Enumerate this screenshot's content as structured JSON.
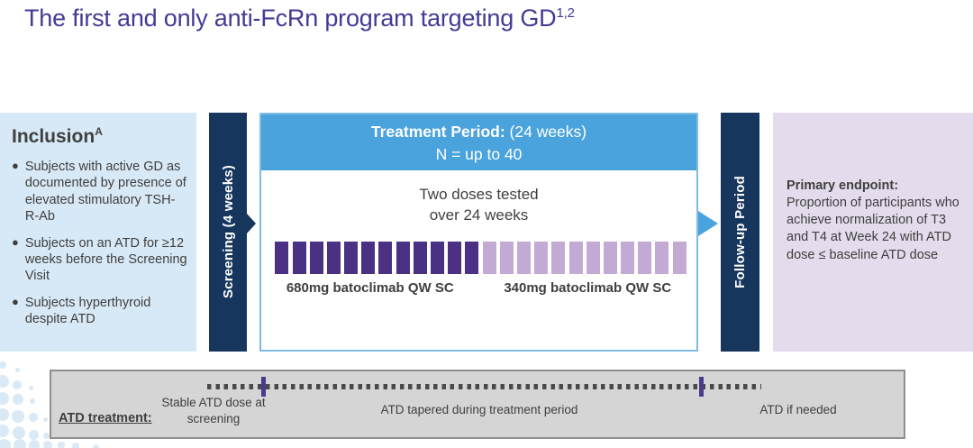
{
  "title": {
    "text": "The first and only anti-FcRn program targeting GD",
    "superscript": "1,2"
  },
  "inclusion": {
    "heading": "Inclusion",
    "heading_superscript": "A",
    "bullets": [
      "Subjects with active GD as documented by presence of elevated stimulatory TSH-R-Ab",
      "Subjects on an ATD for ≥12 weeks before the Screening Visit",
      "Subjects hyperthyroid despite ATD"
    ]
  },
  "screening": {
    "label": "Screening (4 weeks)"
  },
  "treatment": {
    "header_bold": "Treatment Period:",
    "header_rest": " (24 weeks)",
    "header_line2": "N = up to 40",
    "subtitle_line1": "Two doses tested",
    "subtitle_line2": "over 24 weeks",
    "dose_groups": [
      {
        "label": "680mg batoclimab QW SC",
        "doses": 12,
        "color": "#4A3184"
      },
      {
        "label": "340mg batoclimab QW SC",
        "doses": 12,
        "color": "#C3AAD5"
      }
    ]
  },
  "followup": {
    "label": "Follow-up Period"
  },
  "endpoint": {
    "heading": "Primary endpoint:",
    "body": "Proportion of participants who achieve normalization of T3 and T4 at Week 24 with ATD dose ≤ baseline ATD dose"
  },
  "atd_timeline": {
    "label": "ATD treatment:",
    "phases": [
      "Stable ATD dose at screening",
      "ATD tapered during treatment period",
      "ATD if needed"
    ]
  },
  "colors": {
    "title_text": "#423B94",
    "navy_bar": "#17365D",
    "treatment_header_blue": "#4AA3DC",
    "treatment_border_blue": "#7FBCE5",
    "dose_dark_purple": "#4A3184",
    "dose_light_purple": "#C3AAD5",
    "inclusion_bg": "#D7E9F6",
    "endpoint_bg": "#E4DBEC",
    "timeline_bg": "#D5D5D5",
    "tick_purple": "#4C3A8C"
  }
}
